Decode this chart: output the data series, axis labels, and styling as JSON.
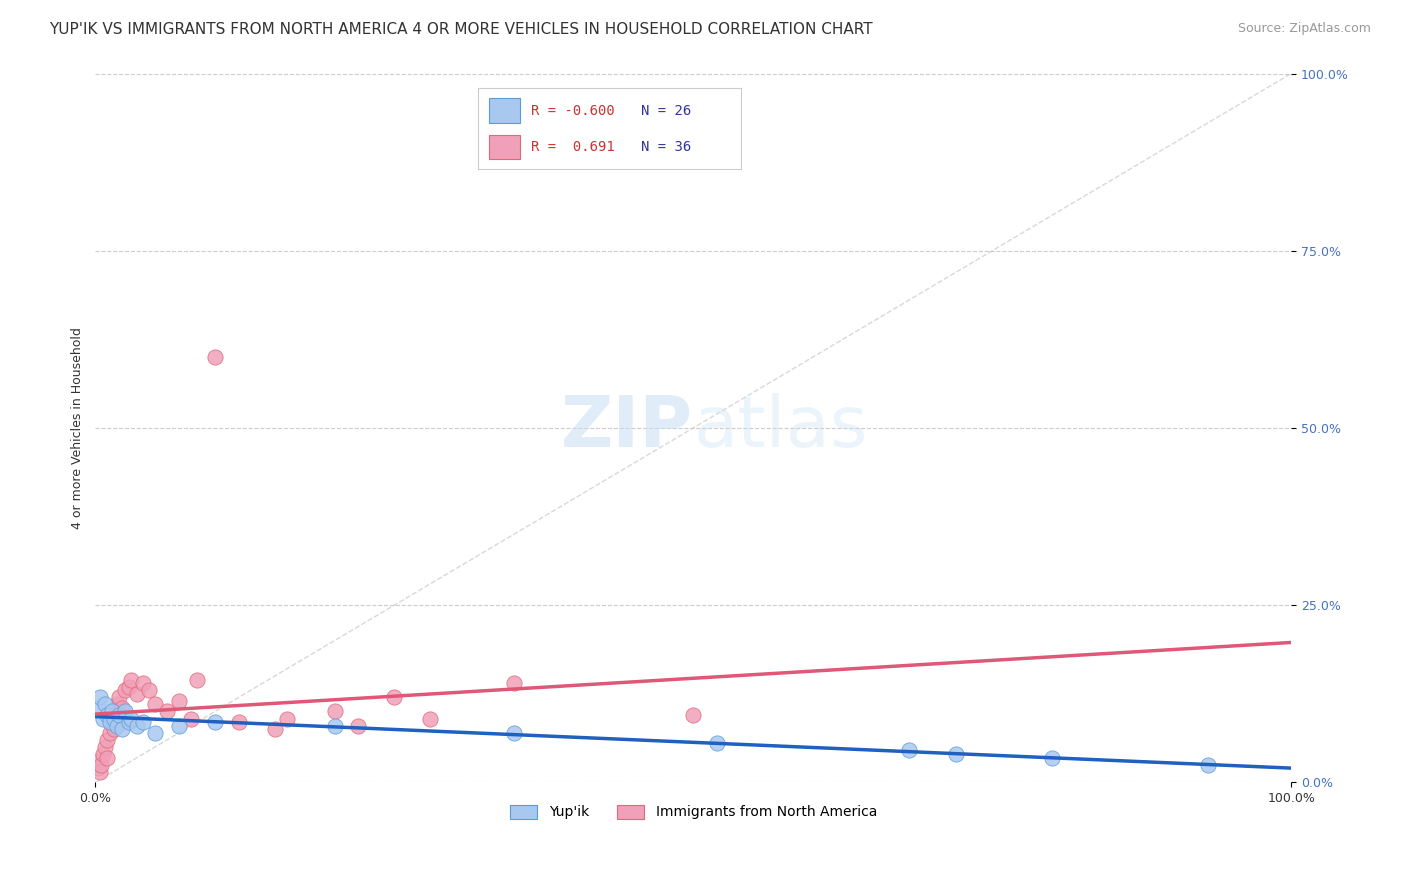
{
  "title": "YUP'IK VS IMMIGRANTS FROM NORTH AMERICA 4 OR MORE VEHICLES IN HOUSEHOLD CORRELATION CHART",
  "source": "Source: ZipAtlas.com",
  "ylabel": "4 or more Vehicles in Household",
  "background_color": "#ffffff",
  "watermark": "ZIPatlas",
  "blue_scatter_x": [
    0.2,
    0.4,
    0.6,
    0.8,
    1.0,
    1.2,
    1.4,
    1.6,
    1.8,
    2.0,
    2.2,
    2.5,
    2.8,
    3.0,
    3.5,
    4.0,
    5.0,
    7.0,
    10.0,
    20.0,
    35.0,
    52.0,
    68.0,
    72.0,
    80.0,
    93.0
  ],
  "blue_scatter_y": [
    10.5,
    12.0,
    9.0,
    11.0,
    9.5,
    8.5,
    10.0,
    9.0,
    8.0,
    9.5,
    7.5,
    10.0,
    8.5,
    9.0,
    8.0,
    8.5,
    7.0,
    8.0,
    8.5,
    8.0,
    7.0,
    5.5,
    4.5,
    4.0,
    3.5,
    2.5
  ],
  "pink_scatter_x": [
    0.2,
    0.3,
    0.4,
    0.5,
    0.6,
    0.8,
    1.0,
    1.0,
    1.2,
    1.4,
    1.5,
    1.6,
    1.8,
    2.0,
    2.2,
    2.5,
    2.8,
    3.0,
    3.5,
    4.0,
    4.5,
    5.0,
    6.0,
    7.0,
    8.0,
    8.5,
    10.0,
    12.0,
    16.0,
    20.0,
    22.0,
    25.0,
    28.0,
    35.0,
    15.0,
    50.0
  ],
  "pink_scatter_y": [
    2.0,
    3.0,
    1.5,
    2.5,
    4.0,
    5.0,
    6.0,
    3.5,
    7.0,
    8.5,
    9.5,
    7.5,
    11.0,
    12.0,
    10.5,
    13.0,
    13.5,
    14.5,
    12.5,
    14.0,
    13.0,
    11.0,
    10.0,
    11.5,
    9.0,
    14.5,
    60.0,
    8.5,
    9.0,
    10.0,
    8.0,
    12.0,
    9.0,
    14.0,
    7.5,
    9.5
  ],
  "diagonal_line_color": "#c8c8c8",
  "blue_scatter_color": "#a8c8f0",
  "blue_scatter_edge": "#5b9bd5",
  "pink_scatter_color": "#f0a0b8",
  "pink_scatter_edge": "#e06878",
  "blue_line_color": "#2060c0",
  "pink_line_color": "#e05878",
  "blue_R": "-0.600",
  "blue_N": "26",
  "pink_R": "0.691",
  "pink_N": "36",
  "blue_label": "Yup'ik",
  "pink_label": "Immigrants from North America",
  "title_fontsize": 11,
  "source_fontsize": 9,
  "tick_fontsize": 9,
  "legend_fontsize": 10,
  "ylabel_fontsize": 9,
  "ytick_color": "#4472c4",
  "xtick_color": "#333333"
}
